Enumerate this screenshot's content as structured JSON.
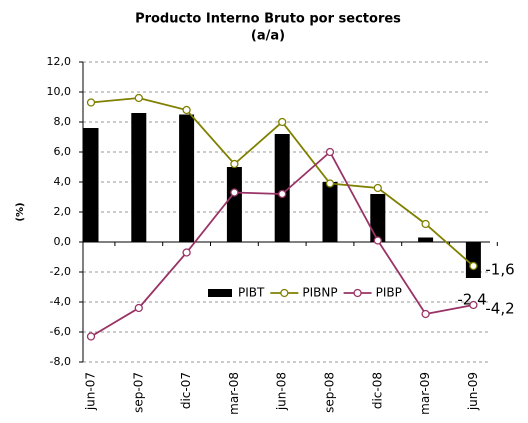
{
  "chart_data": {
    "type": "bar",
    "title": "Producto Interno Bruto  por sectores",
    "subtitle": "(a/a)",
    "ylabel": "(%)",
    "categories": [
      "jun-07",
      "sep-07",
      "dic-07",
      "mar-08",
      "jun-08",
      "sep-08",
      "dic-08",
      "mar-09",
      "jun-09"
    ],
    "series": [
      {
        "name": "PIBT",
        "type": "bar",
        "color": "#000000",
        "values": [
          7.6,
          8.6,
          8.5,
          5.0,
          7.2,
          4.0,
          3.2,
          0.3,
          -2.4
        ],
        "value_labels": [
          null,
          null,
          null,
          null,
          null,
          null,
          null,
          null,
          "-2,4"
        ]
      },
      {
        "name": "PIBNP",
        "type": "line",
        "color": "#808000",
        "values": [
          9.3,
          9.6,
          8.8,
          5.2,
          8.0,
          3.9,
          3.6,
          1.2,
          -1.6
        ],
        "value_labels": [
          null,
          null,
          null,
          null,
          null,
          null,
          null,
          null,
          "-1,6"
        ]
      },
      {
        "name": "PIBP",
        "type": "line",
        "color": "#993366",
        "values": [
          -6.3,
          -4.4,
          -0.7,
          3.3,
          3.2,
          6.0,
          0.1,
          -4.8,
          -4.2
        ],
        "value_labels": [
          null,
          null,
          null,
          null,
          null,
          null,
          null,
          null,
          "-4,2"
        ]
      }
    ],
    "ylim": [
      -8,
      12
    ],
    "yticks": [
      {
        "value": -8,
        "label": "-8,0"
      },
      {
        "value": -6,
        "label": "-6,0"
      },
      {
        "value": -4,
        "label": "-4,0"
      },
      {
        "value": -2,
        "label": "-2,0"
      },
      {
        "value": 0,
        "label": "0,0"
      },
      {
        "value": 2,
        "label": "2,0"
      },
      {
        "value": 4,
        "label": "4,0"
      },
      {
        "value": 6,
        "label": "6,0"
      },
      {
        "value": 8,
        "label": "8,0"
      },
      {
        "value": 10,
        "label": "10,0"
      },
      {
        "value": 12,
        "label": "12,0"
      }
    ],
    "grid": true,
    "legend": "bottom"
  }
}
